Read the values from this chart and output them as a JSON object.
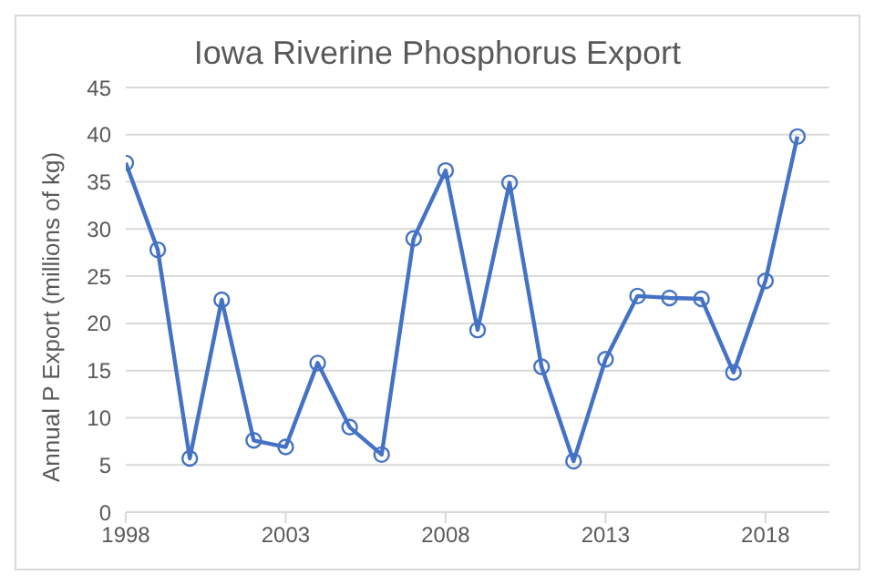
{
  "chart_data": {
    "type": "line",
    "title": "Iowa Riverine Phosphorus Export",
    "ylabel": "Annual P Export (millions of kg)",
    "x": [
      1998,
      1999,
      2000,
      2001,
      2002,
      2003,
      2004,
      2005,
      2006,
      2007,
      2008,
      2009,
      2010,
      2011,
      2012,
      2013,
      2014,
      2015,
      2016,
      2017,
      2018,
      2019
    ],
    "series": [
      {
        "color": "#4472c4",
        "values": [
          37,
          27.8,
          5.7,
          22.5,
          7.6,
          6.9,
          15.8,
          9,
          6.1,
          29,
          36.2,
          19.3,
          34.9,
          15.4,
          5.4,
          16.2,
          22.9,
          22.7,
          22.6,
          14.8,
          24.5,
          39.8
        ]
      }
    ],
    "xlim": [
      1998,
      2020
    ],
    "xticks": [
      1998,
      2003,
      2008,
      2013,
      2018
    ],
    "ylim": [
      0,
      45
    ],
    "yticks": [
      0,
      5,
      10,
      15,
      20,
      25,
      30,
      35,
      40,
      45
    ],
    "grid": "y",
    "marker": "circle",
    "line_style": "solid",
    "legend": false
  }
}
